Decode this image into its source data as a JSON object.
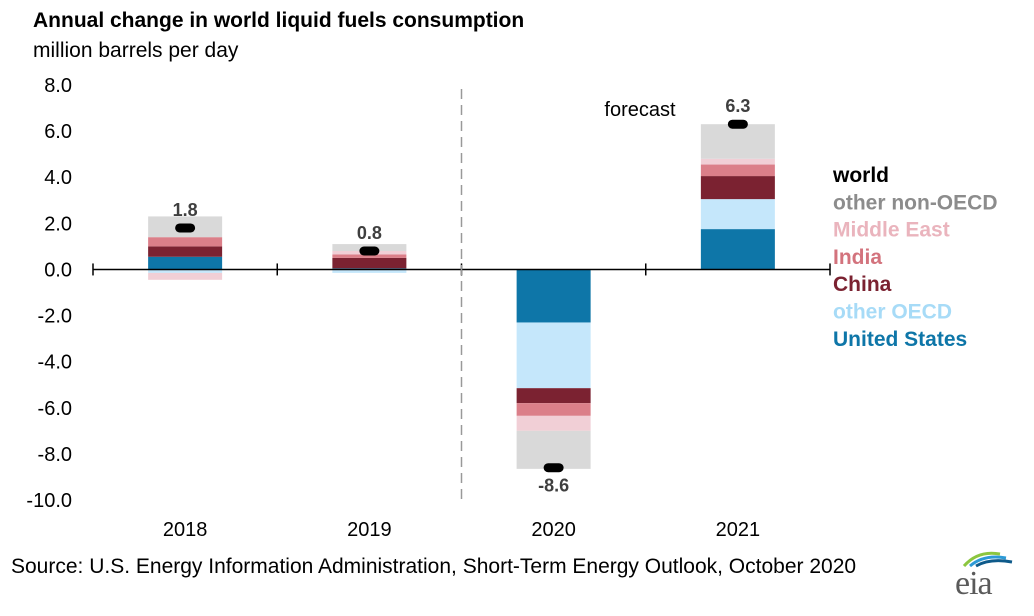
{
  "header": {
    "title": "Annual change in world liquid fuels consumption",
    "subtitle": "million barrels per day"
  },
  "source": "Source: U.S. Energy Information Administration, Short-Term Energy Outlook, October 2020",
  "logo": {
    "text": "eia",
    "icon": "eia-logo-icon"
  },
  "chart_data": {
    "type": "bar",
    "stacked": true,
    "categories": [
      "2018",
      "2019",
      "2020",
      "2021"
    ],
    "ylim": [
      -10,
      8
    ],
    "yticks": [
      8,
      6,
      4,
      2,
      0,
      -2,
      -4,
      -6,
      -8,
      -10
    ],
    "ytick_labels": [
      "8.0",
      "6.0",
      "4.0",
      "2.0",
      "0.0",
      "-2.0",
      "-4.0",
      "-6.0",
      "-8.0",
      "-10.0"
    ],
    "grid": false,
    "legend_position": "right",
    "series": [
      {
        "name": "United States",
        "color": "#0e76a8",
        "values": [
          0.55,
          0.05,
          -2.3,
          1.75
        ]
      },
      {
        "name": "other OECD",
        "color": "#c5e7fb",
        "values": [
          -0.15,
          -0.15,
          -2.85,
          1.3
        ]
      },
      {
        "name": "China",
        "color": "#7b2231",
        "values": [
          0.45,
          0.45,
          -0.65,
          1.0
        ]
      },
      {
        "name": "India",
        "color": "#db7f89",
        "values": [
          0.4,
          0.15,
          -0.55,
          0.5
        ]
      },
      {
        "name": "Middle East",
        "color": "#f1cfd6",
        "values": [
          -0.3,
          0.15,
          -0.65,
          0.25
        ]
      },
      {
        "name": "other non-OECD",
        "color": "#d9d9d9",
        "values": [
          0.9,
          0.3,
          -1.65,
          1.5
        ]
      }
    ],
    "world": {
      "name": "world",
      "color": "#000000",
      "values": [
        1.8,
        0.8,
        -8.6,
        6.3
      ],
      "labels": [
        "1.8",
        "0.8",
        "-8.6",
        "6.3"
      ]
    },
    "legend_order": [
      "world",
      "other non-OECD",
      "Middle East",
      "India",
      "China",
      "other OECD",
      "United States"
    ],
    "annotation": {
      "text": "forecast"
    }
  }
}
